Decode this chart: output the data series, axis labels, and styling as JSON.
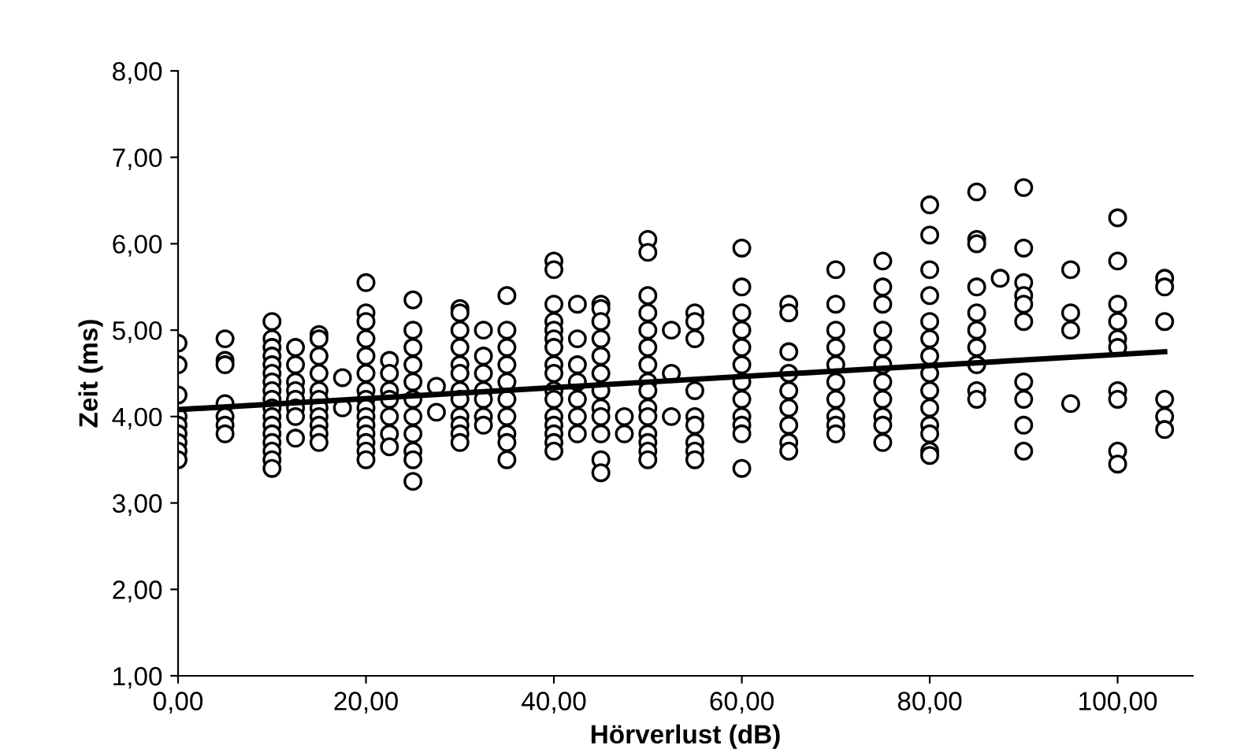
{
  "chart_data": {
    "type": "scatter",
    "xlabel": "Hörverlust (dB)",
    "ylabel": "Zeit (ms)",
    "xlim": [
      0,
      108
    ],
    "ylim": [
      1,
      8
    ],
    "xticks": [
      {
        "value": 0,
        "label": "0,00"
      },
      {
        "value": 20,
        "label": "20,00"
      },
      {
        "value": 40,
        "label": "40,00"
      },
      {
        "value": 60,
        "label": "60,00"
      },
      {
        "value": 80,
        "label": "80,00"
      },
      {
        "value": 100,
        "label": "100,00"
      }
    ],
    "yticks": [
      {
        "value": 1,
        "label": "1,00"
      },
      {
        "value": 2,
        "label": "2,00"
      },
      {
        "value": 3,
        "label": "3,00"
      },
      {
        "value": 4,
        "label": "4,00"
      },
      {
        "value": 5,
        "label": "5,00"
      },
      {
        "value": 6,
        "label": "6,00"
      },
      {
        "value": 7,
        "label": "7,00"
      },
      {
        "value": 8,
        "label": "8,00"
      }
    ],
    "grid": false,
    "legend": false,
    "series": [
      {
        "color": "#000000",
        "marker": "circle",
        "x": [
          0,
          0,
          0,
          0,
          0,
          0,
          0,
          0,
          0,
          5,
          5,
          5,
          5,
          5,
          5,
          5,
          10,
          10,
          10,
          10,
          10,
          10,
          10,
          10,
          10,
          10,
          10,
          10,
          10,
          10,
          10,
          10,
          10,
          12.5,
          12.5,
          12.5,
          12.5,
          12.5,
          12.5,
          12.5,
          12.5,
          15,
          15,
          15,
          15,
          15,
          15,
          15,
          15,
          15,
          15,
          15,
          17.5,
          17.5,
          20,
          20,
          20,
          20,
          20,
          20,
          20,
          20,
          20,
          20,
          20,
          20,
          20,
          20,
          20,
          22.5,
          22.5,
          22.5,
          22.5,
          22.5,
          22.5,
          22.5,
          25,
          25,
          25,
          25,
          25,
          25,
          25,
          25,
          25,
          25,
          25,
          27.5,
          27.5,
          30,
          30,
          30,
          30,
          30,
          30,
          30,
          30,
          30,
          30,
          30,
          30,
          32.5,
          32.5,
          32.5,
          32.5,
          32.5,
          32.5,
          32.5,
          35,
          35,
          35,
          35,
          35,
          35,
          35,
          35,
          35,
          35,
          40,
          40,
          40,
          40,
          40,
          40,
          40,
          40,
          40,
          40,
          40,
          40,
          40,
          40,
          40,
          40,
          42.5,
          42.5,
          42.5,
          42.5,
          42.5,
          42.5,
          42.5,
          45,
          45,
          45,
          45,
          45,
          45,
          45,
          45,
          45,
          45,
          45,
          45,
          47.5,
          47.5,
          50,
          50,
          50,
          50,
          50,
          50,
          50,
          50,
          50,
          50,
          50,
          50,
          50,
          50,
          50,
          52.5,
          52.5,
          52.5,
          55,
          55,
          55,
          55,
          55,
          55,
          55,
          55,
          55,
          60,
          60,
          60,
          60,
          60,
          60,
          60,
          60,
          60,
          60,
          60,
          60,
          65,
          65,
          65,
          65,
          65,
          65,
          65,
          65,
          65,
          70,
          70,
          70,
          70,
          70,
          70,
          70,
          70,
          70,
          70,
          75,
          75,
          75,
          75,
          75,
          75,
          75,
          75,
          75,
          75,
          75,
          80,
          80,
          80,
          80,
          80,
          80,
          80,
          80,
          80,
          80,
          80,
          80,
          80,
          80,
          85,
          85,
          85,
          85,
          85,
          85,
          85,
          85,
          85,
          85,
          87.5,
          90,
          90,
          90,
          90,
          90,
          90,
          90,
          90,
          90,
          90,
          95,
          95,
          95,
          95,
          100,
          100,
          100,
          100,
          100,
          100,
          100,
          100,
          100,
          100,
          105,
          105,
          105,
          105,
          105,
          105
        ],
        "values": [
          4.85,
          4.6,
          4.25,
          4.0,
          3.9,
          3.8,
          3.7,
          3.6,
          3.5,
          4.9,
          4.65,
          4.6,
          4.15,
          4.0,
          3.9,
          3.8,
          5.1,
          4.9,
          4.8,
          4.7,
          4.6,
          4.5,
          4.4,
          4.3,
          4.2,
          4.1,
          4.0,
          3.9,
          3.8,
          3.7,
          3.6,
          3.5,
          3.4,
          4.8,
          4.6,
          4.4,
          4.3,
          4.2,
          4.1,
          4.0,
          3.75,
          4.95,
          4.9,
          4.7,
          4.5,
          4.3,
          4.2,
          4.1,
          4.0,
          3.9,
          3.8,
          3.7,
          4.45,
          4.1,
          5.55,
          5.2,
          5.1,
          4.9,
          4.7,
          4.5,
          4.3,
          4.2,
          4.1,
          4.0,
          3.9,
          3.8,
          3.7,
          3.6,
          3.5,
          4.65,
          4.5,
          4.3,
          4.2,
          4.0,
          3.8,
          3.65,
          5.35,
          5.0,
          4.8,
          4.6,
          4.4,
          4.2,
          4.0,
          3.8,
          3.6,
          3.5,
          3.25,
          4.35,
          4.05,
          5.25,
          5.2,
          5.0,
          4.8,
          4.6,
          4.5,
          4.3,
          4.2,
          4.0,
          3.9,
          3.8,
          3.7,
          5.0,
          4.7,
          4.5,
          4.3,
          4.2,
          4.0,
          3.9,
          5.4,
          5.0,
          4.8,
          4.6,
          4.4,
          4.2,
          4.0,
          3.8,
          3.7,
          3.5,
          5.8,
          5.7,
          5.3,
          5.1,
          5.0,
          4.9,
          4.8,
          4.6,
          4.5,
          4.3,
          4.2,
          4.0,
          3.9,
          3.8,
          3.7,
          3.6,
          5.3,
          4.9,
          4.6,
          4.4,
          4.2,
          4.0,
          3.8,
          5.3,
          5.25,
          5.1,
          4.9,
          4.7,
          4.5,
          4.3,
          4.1,
          4.0,
          3.8,
          3.5,
          3.35,
          4.0,
          3.8,
          6.05,
          5.9,
          5.4,
          5.2,
          5.0,
          4.8,
          4.6,
          4.4,
          4.3,
          4.1,
          4.0,
          3.8,
          3.7,
          3.6,
          3.5,
          5.0,
          4.5,
          4.0,
          5.2,
          5.1,
          4.9,
          4.3,
          4.0,
          3.9,
          3.7,
          3.6,
          3.5,
          5.95,
          5.5,
          5.2,
          5.0,
          4.8,
          4.6,
          4.4,
          4.2,
          4.0,
          3.9,
          3.8,
          3.4,
          5.3,
          5.2,
          4.75,
          4.5,
          4.3,
          4.1,
          3.9,
          3.7,
          3.6,
          5.7,
          5.3,
          5.0,
          4.8,
          4.6,
          4.4,
          4.2,
          4.0,
          3.9,
          3.8,
          5.8,
          5.5,
          5.3,
          5.0,
          4.8,
          4.6,
          4.4,
          4.2,
          4.0,
          3.9,
          3.7,
          6.45,
          6.1,
          5.7,
          5.4,
          5.1,
          4.9,
          4.7,
          4.5,
          4.3,
          4.1,
          3.9,
          3.8,
          3.6,
          3.55,
          6.6,
          6.05,
          6.0,
          5.5,
          5.2,
          5.0,
          4.8,
          4.6,
          4.3,
          4.2,
          5.6,
          6.65,
          5.95,
          5.55,
          5.4,
          5.3,
          5.1,
          4.4,
          4.2,
          3.9,
          3.6,
          5.7,
          5.2,
          5.0,
          4.15,
          6.3,
          5.8,
          5.3,
          5.1,
          4.9,
          4.8,
          4.3,
          4.2,
          3.6,
          3.45,
          5.6,
          5.5,
          5.1,
          4.2,
          4.0,
          3.85
        ]
      },
      {
        "type": "line",
        "color": "#000000",
        "marker": "none",
        "line_style": "solid",
        "x": [
          0,
          105
        ],
        "values": [
          4.08,
          4.75
        ]
      }
    ]
  }
}
